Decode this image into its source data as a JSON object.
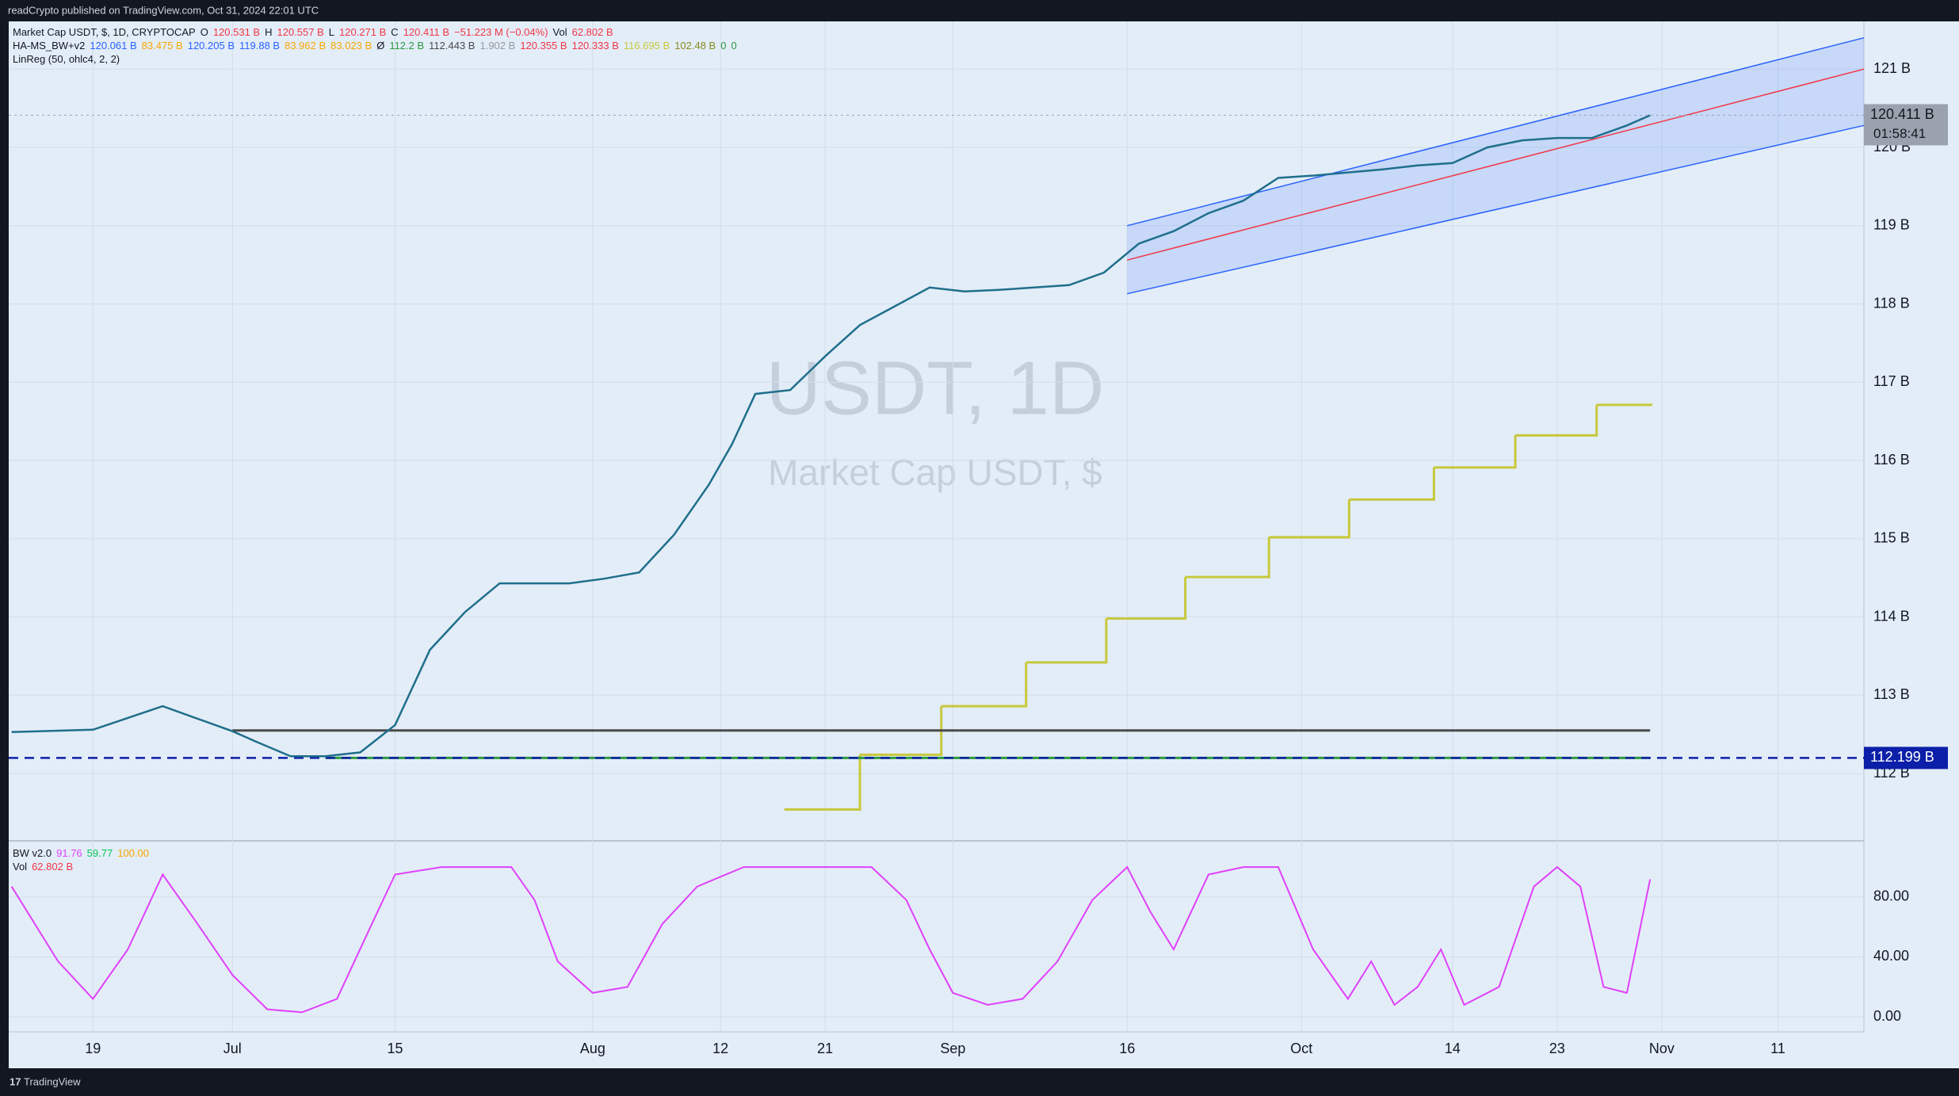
{
  "header": {
    "publisher": "readCrypto published on TradingView.com, Oct 31, 2024 22:01 UTC"
  },
  "legend": [
    [
      {
        "text": "Market Cap USDT, $, 1D, CRYPTOCAP",
        "color": "#131722"
      },
      {
        "text": "O",
        "color": "#131722"
      },
      {
        "text": "120.531 B",
        "color": "#f23645"
      },
      {
        "text": "H",
        "color": "#131722"
      },
      {
        "text": "120.557 B",
        "color": "#f23645"
      },
      {
        "text": "L",
        "color": "#131722"
      },
      {
        "text": "120.271 B",
        "color": "#f23645"
      },
      {
        "text": "C",
        "color": "#131722"
      },
      {
        "text": "120.411 B",
        "color": "#f23645"
      },
      {
        "text": "−51.223 M (−0.04%)",
        "color": "#f23645"
      },
      {
        "text": "Vol",
        "color": "#131722"
      },
      {
        "text": "62.802 B",
        "color": "#f23645"
      }
    ],
    [
      {
        "text": "HA-MS_BW+v2",
        "color": "#131722"
      },
      {
        "text": "120.061 B",
        "color": "#2962ff"
      },
      {
        "text": "83.475 B",
        "color": "#f7a600"
      },
      {
        "text": "120.205 B",
        "color": "#2962ff"
      },
      {
        "text": "119.88 B",
        "color": "#2962ff"
      },
      {
        "text": "83.962 B",
        "color": "#f7a600"
      },
      {
        "text": "83.023 B",
        "color": "#f7a600"
      },
      {
        "text": "Ø",
        "color": "#131722"
      },
      {
        "text": "112.2 B",
        "color": "#2e9a3e"
      },
      {
        "text": "112.443 B",
        "color": "#4a4a4a"
      },
      {
        "text": "1.902 B",
        "color": "#9598a1"
      },
      {
        "text": "120.355 B",
        "color": "#f23645"
      },
      {
        "text": "120.333 B",
        "color": "#f23645"
      },
      {
        "text": "116.695 B",
        "color": "#c8c83c"
      },
      {
        "text": "102.48 B",
        "color": "#8a8a20"
      },
      {
        "text": "0",
        "color": "#2e9a3e"
      },
      {
        "text": "0",
        "color": "#2e9a3e"
      }
    ],
    [
      {
        "text": "LinReg (50, ohlc4, 2, 2)",
        "color": "#131722"
      }
    ]
  ],
  "watermark": {
    "symbol": "USDT, 1D",
    "name": "Market Cap USDT, $"
  },
  "osc_legend": [
    [
      {
        "text": "BW v2.0",
        "color": "#131722"
      },
      {
        "text": "91.76",
        "color": "#e040fb"
      },
      {
        "text": "59.77",
        "color": "#00c853"
      },
      {
        "text": "100.00",
        "color": "#f7a600"
      }
    ],
    [
      {
        "text": "Vol",
        "color": "#131722"
      },
      {
        "text": "62.802 B",
        "color": "#f23645"
      }
    ]
  ],
  "footer": {
    "brand": "TradingView"
  },
  "chart_data": [
    {
      "type": "line",
      "color": "#1f6f8b",
      "x": [
        -19,
        -12,
        -6,
        -3,
        0,
        2,
        5,
        8,
        11,
        14,
        17,
        20,
        23,
        26,
        29,
        32,
        35,
        38,
        41,
        43,
        45,
        48,
        51,
        54,
        57,
        60,
        63,
        66,
        69,
        72,
        75,
        78,
        81,
        84,
        87,
        90,
        93,
        96,
        99,
        102,
        105,
        108,
        111,
        114,
        117,
        120,
        122
      ],
      "values": [
        112.53,
        112.56,
        112.86,
        112.7,
        112.54,
        112.41,
        112.22,
        112.22,
        112.27,
        112.62,
        113.58,
        114.06,
        114.43,
        114.43,
        114.43,
        114.49,
        114.57,
        115.05,
        115.69,
        116.21,
        116.85,
        116.9,
        117.33,
        117.73,
        117.97,
        118.21,
        118.16,
        118.18,
        118.21,
        118.24,
        118.4,
        118.77,
        118.93,
        119.16,
        119.32,
        119.61,
        119.64,
        119.68,
        119.72,
        119.77,
        119.8,
        120.0,
        120.09,
        120.12,
        120.12,
        120.28,
        120.41
      ],
      "xlim": [
        -19.25,
        140.4
      ],
      "ylim": [
        111.14,
        121.61
      ],
      "xticks": [
        {
          "value": -12,
          "label": "19"
        },
        {
          "value": 0,
          "label": "Jul"
        },
        {
          "value": 14,
          "label": "15"
        },
        {
          "value": 31,
          "label": "Aug"
        },
        {
          "value": 42,
          "label": "12"
        },
        {
          "value": 51,
          "label": "21"
        },
        {
          "value": 62,
          "label": "Sep"
        },
        {
          "value": 77,
          "label": "16"
        },
        {
          "value": 92,
          "label": "Oct"
        },
        {
          "value": 105,
          "label": "14"
        },
        {
          "value": 114,
          "label": "23"
        },
        {
          "value": 123,
          "label": "Nov"
        },
        {
          "value": 133,
          "label": "11"
        }
      ],
      "yticks": [
        {
          "value": 112,
          "label": "112 B"
        },
        {
          "value": 113,
          "label": "113 B"
        },
        {
          "value": 114,
          "label": "114 B"
        },
        {
          "value": 115,
          "label": "115 B"
        },
        {
          "value": 116,
          "label": "116 B"
        },
        {
          "value": 117,
          "label": "117 B"
        },
        {
          "value": 118,
          "label": "118 B"
        },
        {
          "value": 119,
          "label": "119 B"
        },
        {
          "value": 120,
          "label": "120 B"
        },
        {
          "value": 121,
          "label": "121 B"
        }
      ],
      "grid": true,
      "step": {
        "color": "#c8c83c",
        "x": [
          47.5,
          54,
          61,
          68.3,
          75.2,
          82,
          89.2,
          96.1,
          103.4,
          110.4,
          117.4,
          122.2
        ],
        "values": [
          111.54,
          112.24,
          112.86,
          113.42,
          113.98,
          114.51,
          115.02,
          115.5,
          115.91,
          116.32,
          116.71,
          116.71
        ]
      },
      "channel": {
        "x": [
          77,
          140.4
        ],
        "upper": [
          119.0,
          121.4
        ],
        "center": [
          118.56,
          121.0
        ],
        "lower": [
          118.13,
          120.28
        ]
      },
      "levels": [
        {
          "value": 112.55,
          "x": [
            0,
            122
          ],
          "color": "#4a4a4a"
        },
        {
          "value": 112.2,
          "x": [
            8,
            122
          ],
          "color": "#2e9a3e"
        }
      ],
      "last_price": {
        "value": 120.411,
        "label": "120.411 B",
        "countdown": "01:58:41"
      },
      "marked_level": {
        "value": 112.199,
        "label": "112.199 B"
      }
    },
    {
      "type": "line",
      "color": "#e040fb",
      "x": [
        -19,
        -15,
        -12,
        -9,
        -6,
        -3,
        0,
        3,
        6,
        9,
        12,
        14,
        18,
        24,
        26,
        28,
        31,
        34,
        37,
        40,
        44,
        55,
        58,
        60,
        62,
        65,
        68,
        71,
        74,
        77,
        79,
        81,
        84,
        87,
        90,
        93,
        96,
        98,
        100,
        102,
        104,
        106,
        109,
        112,
        114,
        116,
        118,
        120,
        122
      ],
      "values": [
        87,
        37,
        12,
        45,
        95,
        62,
        28,
        5,
        3,
        12,
        62,
        95,
        100,
        100,
        78,
        37,
        16,
        20,
        62,
        87,
        100,
        100,
        78,
        45,
        16,
        8,
        12,
        37,
        78,
        100,
        70,
        45,
        95,
        100,
        100,
        45,
        12,
        37,
        8,
        20,
        45,
        8,
        20,
        87,
        100,
        87,
        20,
        16,
        91.76
      ],
      "xlim": [
        -19.25,
        140.4
      ],
      "ylim": [
        -10,
        117.5
      ],
      "yticks": [
        {
          "value": 0,
          "label": "0.00"
        },
        {
          "value": 40,
          "label": "40.00"
        },
        {
          "value": 80,
          "label": "80.00"
        }
      ],
      "grid": true
    }
  ]
}
